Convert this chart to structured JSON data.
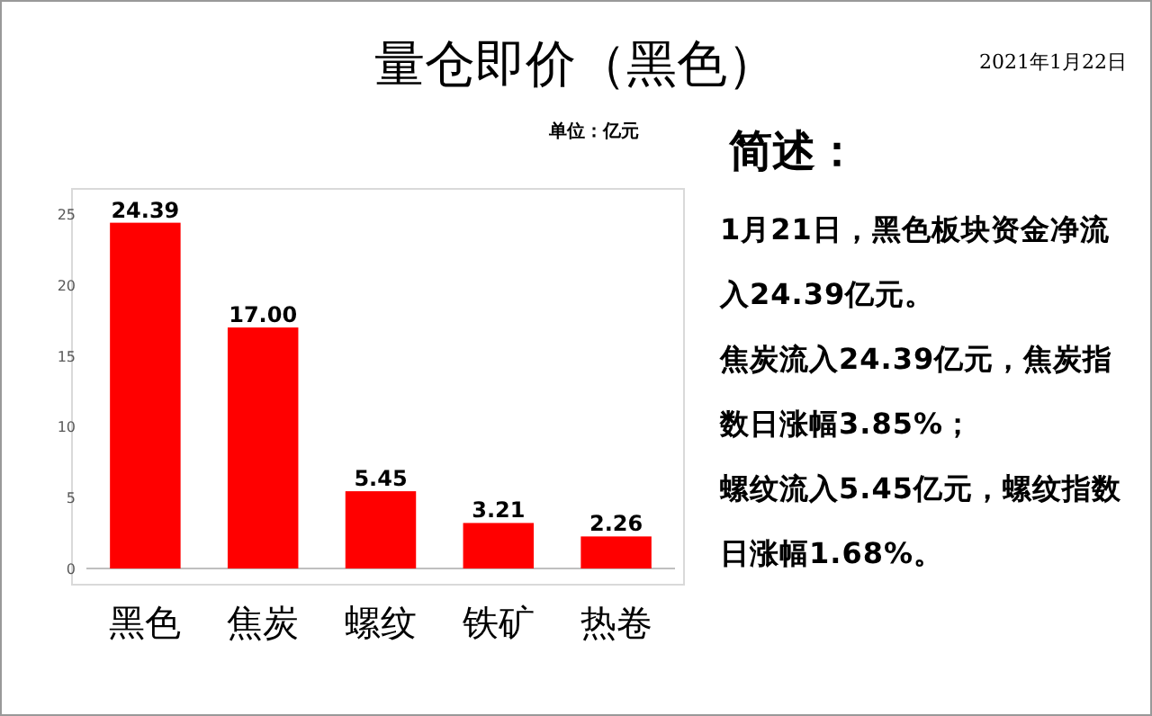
{
  "chart_data": {
    "type": "bar",
    "title": "量仓即价（黑色）",
    "subtitle": "单位：亿元",
    "categories": [
      "黑色",
      "焦炭",
      "螺纹",
      "铁矿",
      "热卷"
    ],
    "values": [
      24.39,
      17.0,
      5.45,
      3.21,
      2.26
    ],
    "value_labels": [
      "24.39",
      "17.00",
      "5.45",
      "3.21",
      "2.26"
    ],
    "color": "#ff0000",
    "ylim": [
      0,
      25
    ],
    "yticks": [
      0,
      5,
      10,
      15,
      20,
      25
    ],
    "grid": false,
    "annotations": [
      "2021年1月22日",
      "简述：",
      "1月21日，黑色板块资金净流入24.39亿元。",
      "焦炭流入24.39亿元，焦炭指数日涨幅3.85%；",
      "螺纹流入5.45亿元，螺纹指数日涨幅1.68%。"
    ]
  }
}
